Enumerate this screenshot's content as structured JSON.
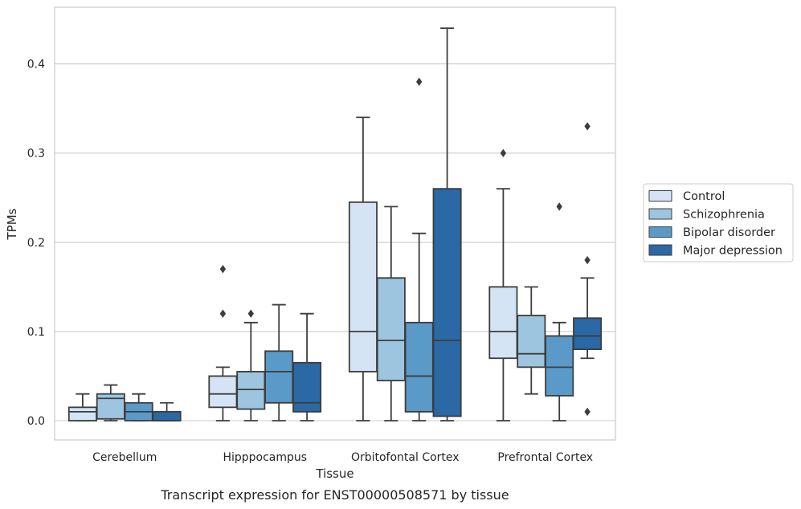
{
  "chart_data": {
    "type": "boxplot",
    "caption": "Transcript expression for ENST00000508571 by tissue",
    "xlabel": "Tissue",
    "ylabel": "TPMs",
    "ylim": [
      -0.021,
      0.464
    ],
    "yticks": [
      0.0,
      0.1,
      0.2,
      0.3,
      0.4
    ],
    "ytick_labels": [
      "0.0",
      "0.1",
      "0.2",
      "0.3",
      "0.4"
    ],
    "grid": "horizontal",
    "legend_position": "right",
    "categories": [
      "Cerebellum",
      "Hipppocampus",
      "Orbitofontal Cortex",
      "Prefrontal Cortex"
    ],
    "series": [
      {
        "name": "Control",
        "color": "#d4e4f4",
        "boxes": [
          {
            "min": 0.0,
            "q1": 0.0,
            "median": 0.01,
            "q3": 0.015,
            "max": 0.03,
            "outliers": []
          },
          {
            "min": 0.0,
            "q1": 0.015,
            "median": 0.03,
            "q3": 0.05,
            "max": 0.06,
            "outliers": [
              0.12,
              0.17
            ]
          },
          {
            "min": 0.0,
            "q1": 0.055,
            "median": 0.1,
            "q3": 0.245,
            "max": 0.34,
            "outliers": []
          },
          {
            "min": 0.0,
            "q1": 0.07,
            "median": 0.1,
            "q3": 0.15,
            "max": 0.26,
            "outliers": [
              0.3
            ]
          }
        ]
      },
      {
        "name": "Schizophrenia",
        "color": "#9dc5df",
        "boxes": [
          {
            "min": 0.0,
            "q1": 0.002,
            "median": 0.025,
            "q3": 0.03,
            "max": 0.04,
            "outliers": []
          },
          {
            "min": 0.0,
            "q1": 0.013,
            "median": 0.035,
            "q3": 0.055,
            "max": 0.11,
            "outliers": [
              0.12
            ]
          },
          {
            "min": 0.0,
            "q1": 0.045,
            "median": 0.09,
            "q3": 0.16,
            "max": 0.24,
            "outliers": []
          },
          {
            "min": 0.03,
            "q1": 0.06,
            "median": 0.075,
            "q3": 0.118,
            "max": 0.15,
            "outliers": []
          }
        ]
      },
      {
        "name": "Bipolar disorder",
        "color": "#5a9ac8",
        "boxes": [
          {
            "min": 0.0,
            "q1": 0.0,
            "median": 0.01,
            "q3": 0.02,
            "max": 0.03,
            "outliers": []
          },
          {
            "min": 0.0,
            "q1": 0.02,
            "median": 0.055,
            "q3": 0.078,
            "max": 0.13,
            "outliers": []
          },
          {
            "min": 0.0,
            "q1": 0.01,
            "median": 0.05,
            "q3": 0.11,
            "max": 0.21,
            "outliers": [
              0.38
            ]
          },
          {
            "min": 0.0,
            "q1": 0.028,
            "median": 0.06,
            "q3": 0.095,
            "max": 0.11,
            "outliers": [
              0.24
            ]
          }
        ]
      },
      {
        "name": "Major depression",
        "color": "#2a68a6",
        "boxes": [
          {
            "min": 0.0,
            "q1": 0.0,
            "median": 0.0,
            "q3": 0.01,
            "max": 0.02,
            "outliers": []
          },
          {
            "min": 0.0,
            "q1": 0.01,
            "median": 0.02,
            "q3": 0.065,
            "max": 0.12,
            "outliers": []
          },
          {
            "min": 0.0,
            "q1": 0.005,
            "median": 0.09,
            "q3": 0.26,
            "max": 0.44,
            "outliers": []
          },
          {
            "min": 0.07,
            "q1": 0.08,
            "median": 0.095,
            "q3": 0.115,
            "max": 0.16,
            "outliers": [
              0.01,
              0.18,
              0.33
            ]
          }
        ]
      }
    ]
  }
}
